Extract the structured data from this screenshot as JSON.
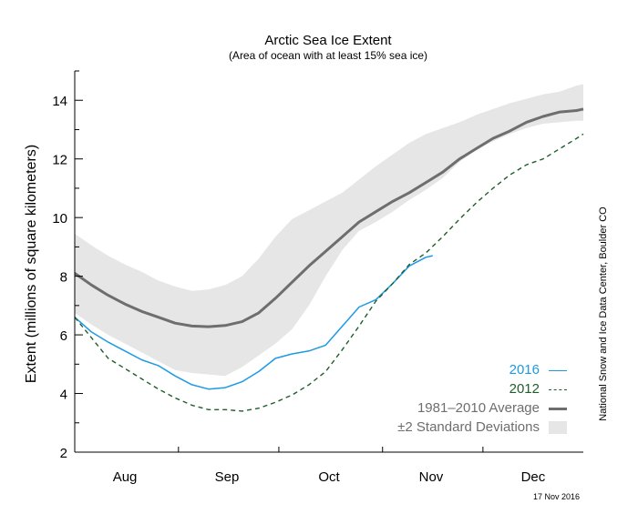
{
  "chart_data": {
    "type": "line",
    "title": "Arctic Sea Ice Extent",
    "subtitle": "(Area of ocean with at least 15% sea ice)",
    "ylabel": "Extent (millions of square kilometers)",
    "xlabel": "",
    "ylim": [
      2,
      15
    ],
    "yticks": [
      2,
      4,
      6,
      8,
      10,
      12,
      14
    ],
    "xlim": [
      0,
      152
    ],
    "x_ticks_labels": [
      "Aug",
      "Sep",
      "Oct",
      "Nov",
      "Dec"
    ],
    "x_month_starts": [
      0,
      31,
      61,
      92,
      122
    ],
    "x_label_days": [
      15,
      45.5,
      76,
      106.5,
      137
    ],
    "x_unit": "days since Jul 18",
    "series": [
      {
        "name": "2016",
        "color": "#1c9ae6",
        "style": "solid",
        "x": [
          0,
          5,
          10,
          15,
          20,
          25,
          30,
          35,
          40,
          45,
          50,
          55,
          60,
          65,
          70,
          75,
          80,
          85,
          90,
          95,
          100,
          105,
          107
        ],
        "values": [
          6.6,
          6.1,
          5.75,
          5.45,
          5.15,
          4.95,
          4.6,
          4.3,
          4.15,
          4.2,
          4.4,
          4.75,
          5.2,
          5.35,
          5.45,
          5.65,
          6.3,
          6.95,
          7.2,
          7.75,
          8.35,
          8.65,
          8.7
        ]
      },
      {
        "name": "2012",
        "color": "#1f5e2a",
        "style": "dashed",
        "x": [
          0,
          5,
          10,
          15,
          20,
          25,
          30,
          35,
          40,
          45,
          50,
          55,
          60,
          65,
          70,
          75,
          80,
          85,
          90,
          95,
          100,
          105,
          110,
          115,
          120,
          125,
          130,
          135,
          140,
          145,
          150,
          152
        ],
        "values": [
          6.6,
          5.9,
          5.2,
          4.85,
          4.5,
          4.15,
          3.85,
          3.6,
          3.45,
          3.45,
          3.4,
          3.5,
          3.7,
          3.95,
          4.3,
          4.75,
          5.5,
          6.3,
          7.15,
          7.75,
          8.4,
          8.8,
          9.35,
          9.95,
          10.5,
          11.0,
          11.45,
          11.8,
          12.0,
          12.35,
          12.7,
          12.85
        ]
      },
      {
        "name": "1981–2010 Average",
        "color": "#6e6e6e",
        "style": "solid",
        "x": [
          0,
          5,
          10,
          15,
          20,
          25,
          30,
          35,
          40,
          45,
          50,
          55,
          60,
          65,
          70,
          75,
          80,
          85,
          90,
          95,
          100,
          105,
          110,
          115,
          120,
          125,
          130,
          135,
          140,
          145,
          150,
          152
        ],
        "values": [
          8.1,
          7.7,
          7.35,
          7.05,
          6.8,
          6.6,
          6.4,
          6.3,
          6.28,
          6.32,
          6.45,
          6.75,
          7.25,
          7.8,
          8.35,
          8.85,
          9.35,
          9.85,
          10.2,
          10.55,
          10.85,
          11.2,
          11.55,
          12.0,
          12.35,
          12.7,
          12.95,
          13.25,
          13.45,
          13.6,
          13.65,
          13.7
        ]
      }
    ],
    "band": {
      "name": "±2 Standard Deviations",
      "color": "#e6e6e6",
      "x": [
        0,
        5,
        10,
        15,
        20,
        25,
        30,
        35,
        40,
        45,
        50,
        55,
        60,
        65,
        70,
        75,
        80,
        85,
        90,
        95,
        100,
        105,
        110,
        115,
        120,
        125,
        130,
        135,
        140,
        145,
        150,
        152
      ],
      "upper": [
        9.45,
        9.05,
        8.7,
        8.4,
        8.15,
        7.85,
        7.65,
        7.5,
        7.55,
        7.7,
        8.0,
        8.6,
        9.35,
        9.95,
        10.25,
        10.55,
        10.85,
        11.3,
        11.75,
        12.15,
        12.55,
        12.85,
        13.05,
        13.25,
        13.5,
        13.7,
        13.9,
        14.05,
        14.2,
        14.3,
        14.5,
        14.55
      ],
      "lower": [
        6.75,
        6.35,
        6.0,
        5.7,
        5.4,
        5.1,
        4.8,
        4.7,
        4.65,
        4.6,
        4.9,
        5.3,
        5.7,
        6.2,
        7.0,
        8.0,
        8.9,
        9.55,
        9.85,
        10.2,
        10.6,
        10.95,
        11.35,
        11.9,
        12.3,
        12.6,
        12.85,
        13.05,
        13.2,
        13.25,
        13.3,
        13.3
      ]
    },
    "legend_position": "bottom-right",
    "grid": false
  },
  "legend": {
    "entry_2016": "2016",
    "entry_2012": "2012",
    "entry_avg": "1981–2010 Average",
    "entry_std": "±2 Standard Deviations"
  },
  "credit": "National Snow and Ice Data Center, Boulder CO",
  "date_stamp": "17 Nov 2016",
  "colors": {
    "line_2016": "#1c9ae6",
    "line_2012": "#1f5e2a",
    "average": "#6e6e6e",
    "std_band": "#e6e6e6",
    "axis": "#000000"
  }
}
